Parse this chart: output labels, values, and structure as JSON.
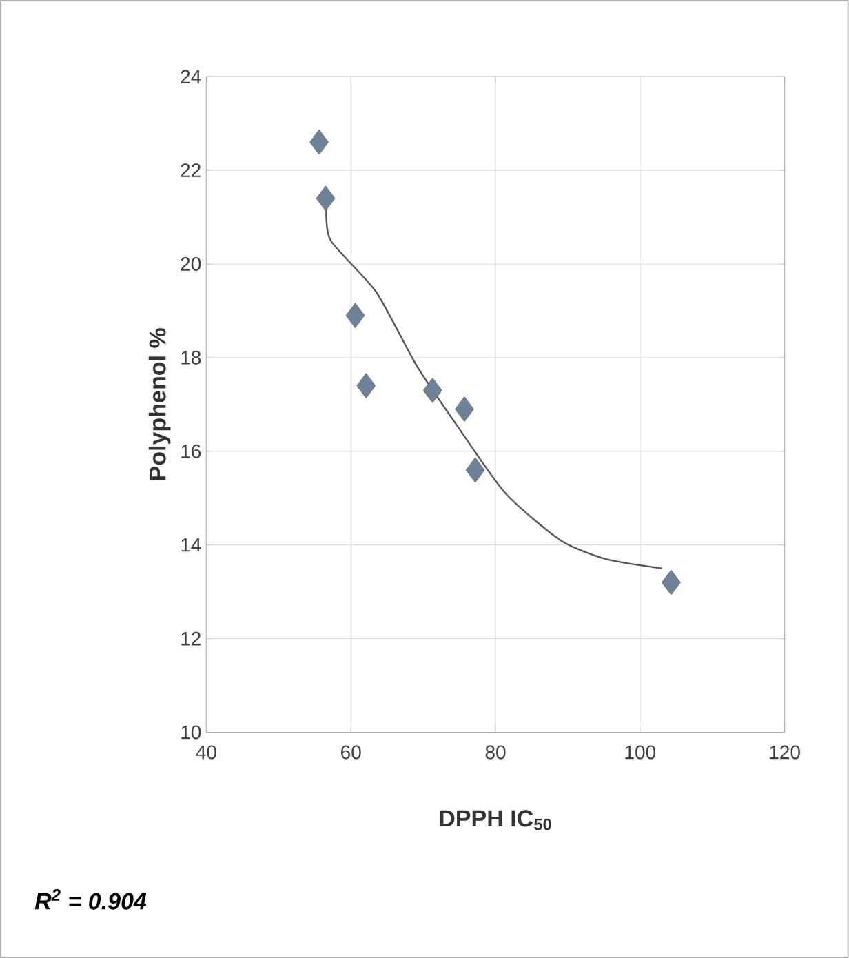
{
  "chart_data": {
    "type": "scatter",
    "xlabel": "DPPH IC$_{50}$",
    "ylabel": "Polyphenol %",
    "xlim": [
      40,
      120
    ],
    "xticks": [
      40,
      60,
      80,
      100,
      120
    ],
    "ylim": [
      10,
      24
    ],
    "yticks": [
      10,
      12,
      14,
      16,
      18,
      20,
      22,
      24
    ],
    "grid": true,
    "marker": "diamond",
    "series": [
      {
        "color": "#6d8199",
        "x": [
          55.6,
          56.5,
          60.6,
          62.1,
          71.3,
          75.7,
          77.2,
          104.3
        ],
        "values": [
          22.6,
          21.4,
          18.9,
          17.4,
          17.3,
          16.9,
          15.6,
          13.2
        ]
      },
      {
        "type": "line",
        "color": "#555555",
        "marker": "none",
        "x": [
          56.6,
          57.2,
          63.5,
          69.2,
          74.9,
          81.4,
          89,
          95.3,
          103
        ],
        "values": [
          21.2,
          20.5,
          19.4,
          17.8,
          16.5,
          15.1,
          14.1,
          13.7,
          13.5
        ]
      }
    ],
    "annotations": [
      "R$^{2}$ = 0.904"
    ]
  }
}
